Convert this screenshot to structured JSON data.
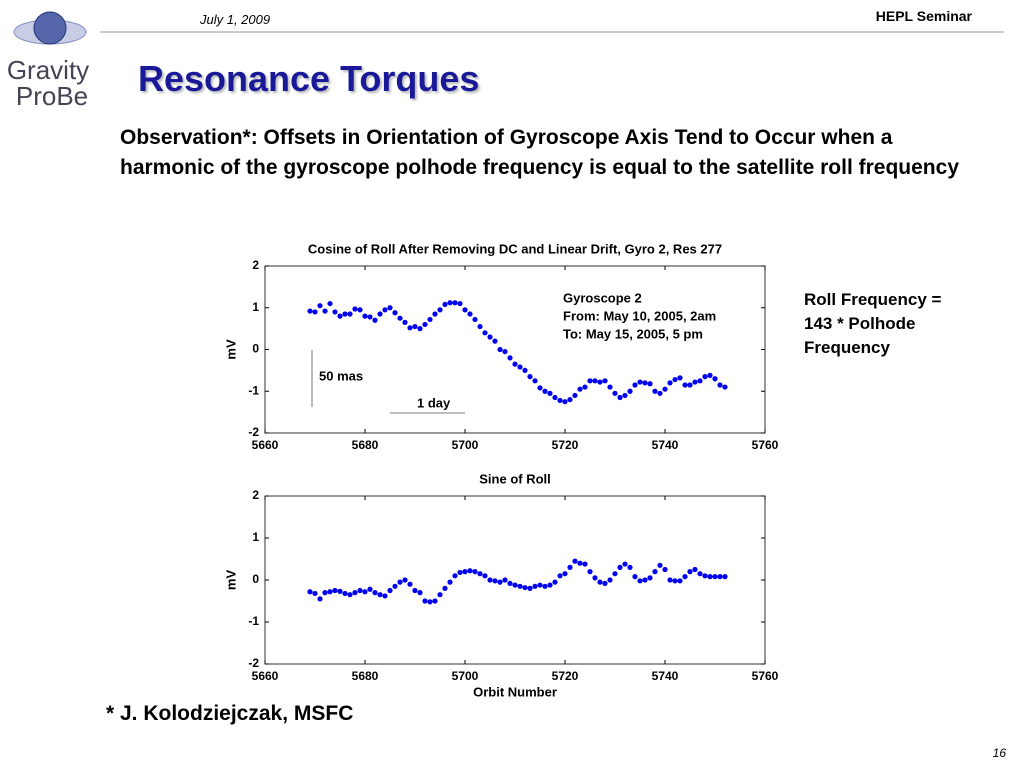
{
  "header": {
    "date": "July 1, 2009",
    "event": "HEPL Seminar",
    "logo_top": "Gravity",
    "logo_bottom": "ProBe",
    "page": "16"
  },
  "title": "Resonance Torques",
  "observation": "Observation*: Offsets in Orientation of Gyroscope Axis Tend to Occur when a harmonic of the gyroscope polhode frequency is equal to the satellite roll frequency",
  "side_note": "Roll Frequency = 143 * Polhode Frequency",
  "footnote": "* J. Kolodziejczak, MSFC",
  "chart_data": [
    {
      "type": "scatter",
      "title": "Cosine of Roll After Removing DC and Linear Drift, Gyro 2, Res 277",
      "ylabel": "mV",
      "annotations": {
        "info": [
          "Gyroscope 2",
          "From: May 10, 2005, 2am",
          "To: May 15, 2005, 5 pm"
        ],
        "vertical_scale": "50 mas",
        "horizontal_scale": "1 day"
      },
      "xlim": [
        5660,
        5760
      ],
      "xticks": [
        5660,
        5680,
        5700,
        5720,
        5740,
        5760
      ],
      "ylim": [
        -2,
        2
      ],
      "yticks": [
        -2,
        -1,
        0,
        1,
        2
      ],
      "color": "#0000ee",
      "x": [
        5669,
        5670,
        5671,
        5672,
        5673,
        5674,
        5675,
        5676,
        5677,
        5678,
        5679,
        5680,
        5681,
        5682,
        5683,
        5684,
        5685,
        5686,
        5687,
        5688,
        5689,
        5690,
        5691,
        5692,
        5693,
        5694,
        5695,
        5696,
        5697,
        5698,
        5699,
        5700,
        5701,
        5702,
        5703,
        5704,
        5705,
        5706,
        5707,
        5708,
        5709,
        5710,
        5711,
        5712,
        5713,
        5714,
        5715,
        5716,
        5717,
        5718,
        5719,
        5720,
        5721,
        5722,
        5723,
        5724,
        5725,
        5726,
        5727,
        5728,
        5729,
        5730,
        5731,
        5732,
        5733,
        5734,
        5735,
        5736,
        5737,
        5738,
        5739,
        5740,
        5741,
        5742,
        5743,
        5744,
        5745,
        5746,
        5747,
        5748,
        5749,
        5750,
        5751,
        5752
      ],
      "values": [
        0.92,
        0.9,
        1.05,
        0.92,
        1.1,
        0.9,
        0.8,
        0.85,
        0.85,
        0.97,
        0.95,
        0.8,
        0.78,
        0.7,
        0.85,
        0.95,
        1.0,
        0.88,
        0.75,
        0.65,
        0.52,
        0.55,
        0.5,
        0.6,
        0.72,
        0.85,
        0.95,
        1.08,
        1.12,
        1.12,
        1.1,
        0.95,
        0.85,
        0.72,
        0.55,
        0.4,
        0.3,
        0.2,
        0.0,
        -0.05,
        -0.2,
        -0.35,
        -0.42,
        -0.5,
        -0.65,
        -0.75,
        -0.92,
        -1.0,
        -1.05,
        -1.15,
        -1.22,
        -1.25,
        -1.2,
        -1.1,
        -0.95,
        -0.9,
        -0.75,
        -0.75,
        -0.78,
        -0.75,
        -0.9,
        -1.05,
        -1.15,
        -1.1,
        -1.0,
        -0.85,
        -0.78,
        -0.8,
        -0.82,
        -1.0,
        -1.05,
        -0.95,
        -0.8,
        -0.72,
        -0.68,
        -0.85,
        -0.85,
        -0.78,
        -0.75,
        -0.65,
        -0.62,
        -0.7,
        -0.85,
        -0.9
      ]
    },
    {
      "type": "scatter",
      "title": "Sine of Roll",
      "ylabel": "mV",
      "xlabel": "Orbit Number",
      "xlim": [
        5660,
        5760
      ],
      "xticks": [
        5660,
        5680,
        5700,
        5720,
        5740,
        5760
      ],
      "ylim": [
        -2,
        2
      ],
      "yticks": [
        -2,
        -1,
        0,
        1,
        2
      ],
      "color": "#0000ee",
      "x": [
        5669,
        5670,
        5671,
        5672,
        5673,
        5674,
        5675,
        5676,
        5677,
        5678,
        5679,
        5680,
        5681,
        5682,
        5683,
        5684,
        5685,
        5686,
        5687,
        5688,
        5689,
        5690,
        5691,
        5692,
        5693,
        5694,
        5695,
        5696,
        5697,
        5698,
        5699,
        5700,
        5701,
        5702,
        5703,
        5704,
        5705,
        5706,
        5707,
        5708,
        5709,
        5710,
        5711,
        5712,
        5713,
        5714,
        5715,
        5716,
        5717,
        5718,
        5719,
        5720,
        5721,
        5722,
        5723,
        5724,
        5725,
        5726,
        5727,
        5728,
        5729,
        5730,
        5731,
        5732,
        5733,
        5734,
        5735,
        5736,
        5737,
        5738,
        5739,
        5740,
        5741,
        5742,
        5743,
        5744,
        5745,
        5746,
        5747,
        5748,
        5749,
        5750,
        5751,
        5752
      ],
      "values": [
        -0.28,
        -0.32,
        -0.45,
        -0.3,
        -0.28,
        -0.25,
        -0.27,
        -0.32,
        -0.35,
        -0.3,
        -0.25,
        -0.28,
        -0.22,
        -0.3,
        -0.35,
        -0.38,
        -0.25,
        -0.15,
        -0.05,
        0.0,
        -0.1,
        -0.25,
        -0.3,
        -0.5,
        -0.52,
        -0.5,
        -0.35,
        -0.2,
        -0.05,
        0.1,
        0.18,
        0.2,
        0.22,
        0.2,
        0.15,
        0.1,
        0.0,
        -0.02,
        -0.05,
        0.0,
        -0.08,
        -0.12,
        -0.15,
        -0.18,
        -0.2,
        -0.15,
        -0.12,
        -0.15,
        -0.12,
        -0.05,
        0.1,
        0.15,
        0.3,
        0.45,
        0.4,
        0.38,
        0.2,
        0.05,
        -0.05,
        -0.08,
        0.0,
        0.15,
        0.3,
        0.38,
        0.3,
        0.08,
        -0.02,
        0.0,
        0.05,
        0.2,
        0.35,
        0.25,
        0.0,
        -0.02,
        -0.02,
        0.08,
        0.2,
        0.25,
        0.15,
        0.1,
        0.08,
        0.08,
        0.08,
        0.08
      ]
    }
  ]
}
